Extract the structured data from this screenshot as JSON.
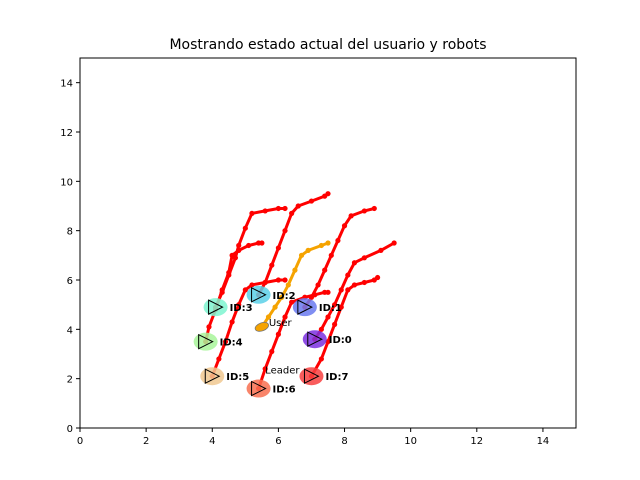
{
  "chart_data": {
    "type": "scatter",
    "title": "Mostrando estado actual del usuario y robots",
    "xlabel": "",
    "ylabel": "",
    "xlim": [
      0,
      15
    ],
    "ylim": [
      0,
      15
    ],
    "xticks": [
      "0",
      "2",
      "4",
      "6",
      "8",
      "10",
      "12",
      "14"
    ],
    "yticks": [
      "0",
      "2",
      "4",
      "6",
      "8",
      "10",
      "12",
      "14"
    ],
    "grid": false,
    "user": {
      "label": "User",
      "position": [
        5.5,
        4.1
      ],
      "color": "#f5a300",
      "trail": [
        [
          5.5,
          4.1
        ],
        [
          5.7,
          4.5
        ],
        [
          5.9,
          4.9
        ],
        [
          6.1,
          5.3
        ],
        [
          6.3,
          5.8
        ],
        [
          6.5,
          6.4
        ],
        [
          6.7,
          7.0
        ],
        [
          6.9,
          7.2
        ],
        [
          7.3,
          7.4
        ],
        [
          7.5,
          7.5
        ]
      ]
    },
    "leader_label": "Leader",
    "leader_label_position": [
      5.6,
      2.2
    ],
    "robots": [
      {
        "id": "ID:0",
        "position": [
          7.1,
          3.6
        ],
        "color": "#7b2fe0",
        "trail": [
          [
            7.1,
            3.6
          ],
          [
            7.3,
            4.0
          ],
          [
            7.5,
            4.5
          ],
          [
            7.7,
            5.0
          ],
          [
            7.9,
            5.6
          ],
          [
            8.1,
            6.2
          ],
          [
            8.3,
            6.7
          ],
          [
            8.6,
            6.9
          ],
          [
            9.1,
            7.2
          ],
          [
            9.5,
            7.5
          ]
        ]
      },
      {
        "id": "ID:1",
        "position": [
          6.8,
          4.9
        ],
        "color": "#6a7af0",
        "trail": [
          [
            6.8,
            4.9
          ],
          [
            7.0,
            5.3
          ],
          [
            7.2,
            5.8
          ],
          [
            7.4,
            6.4
          ],
          [
            7.6,
            7.0
          ],
          [
            7.8,
            7.6
          ],
          [
            8.0,
            8.2
          ],
          [
            8.2,
            8.6
          ],
          [
            8.6,
            8.8
          ],
          [
            8.9,
            8.9
          ]
        ]
      },
      {
        "id": "ID:2",
        "position": [
          5.4,
          5.4
        ],
        "color": "#5ad0e8",
        "trail": [
          [
            5.4,
            5.4
          ],
          [
            5.6,
            5.9
          ],
          [
            5.8,
            6.6
          ],
          [
            6.0,
            7.3
          ],
          [
            6.2,
            8.0
          ],
          [
            6.4,
            8.7
          ],
          [
            6.6,
            9.0
          ],
          [
            7.0,
            9.2
          ],
          [
            7.4,
            9.4
          ],
          [
            7.5,
            9.5
          ]
        ]
      },
      {
        "id": "ID:3",
        "position": [
          4.1,
          4.9
        ],
        "color": "#7ef5d0",
        "trail": [
          [
            4.1,
            4.9
          ],
          [
            4.3,
            5.5
          ],
          [
            4.5,
            6.2
          ],
          [
            4.7,
            6.9
          ],
          [
            4.8,
            7.4
          ],
          [
            5.0,
            8.1
          ],
          [
            5.2,
            8.7
          ],
          [
            5.6,
            8.8
          ],
          [
            6.0,
            8.9
          ],
          [
            6.2,
            8.9
          ]
        ]
      },
      {
        "id": "ID:4",
        "position": [
          3.8,
          3.5
        ],
        "color": "#a8f59a",
        "trail": [
          [
            3.8,
            3.5
          ],
          [
            3.9,
            4.1
          ],
          [
            4.1,
            4.8
          ],
          [
            4.3,
            5.6
          ],
          [
            4.5,
            6.3
          ],
          [
            4.6,
            7.0
          ],
          [
            4.8,
            7.2
          ],
          [
            5.1,
            7.4
          ],
          [
            5.4,
            7.5
          ],
          [
            5.5,
            7.5
          ]
        ]
      },
      {
        "id": "ID:5",
        "position": [
          4.0,
          2.1
        ],
        "color": "#f0c890",
        "trail": [
          [
            4.0,
            2.1
          ],
          [
            4.2,
            2.8
          ],
          [
            4.4,
            3.5
          ],
          [
            4.6,
            4.3
          ],
          [
            4.8,
            5.0
          ],
          [
            5.0,
            5.6
          ],
          [
            5.2,
            5.8
          ],
          [
            5.6,
            5.9
          ],
          [
            6.0,
            6.0
          ],
          [
            6.2,
            6.0
          ]
        ]
      },
      {
        "id": "ID:6",
        "position": [
          5.4,
          1.6
        ],
        "color": "#f87050",
        "trail": [
          [
            5.4,
            1.6
          ],
          [
            5.6,
            2.4
          ],
          [
            5.8,
            3.1
          ],
          [
            6.0,
            3.8
          ],
          [
            6.2,
            4.5
          ],
          [
            6.4,
            5.1
          ],
          [
            6.8,
            5.3
          ],
          [
            7.1,
            5.4
          ],
          [
            7.4,
            5.5
          ],
          [
            7.5,
            5.5
          ]
        ]
      },
      {
        "id": "ID:7",
        "position": [
          7.0,
          2.1
        ],
        "color": "#f84040",
        "trail": [
          [
            7.0,
            2.1
          ],
          [
            7.3,
            2.8
          ],
          [
            7.5,
            3.5
          ],
          [
            7.7,
            4.2
          ],
          [
            7.9,
            4.9
          ],
          [
            8.1,
            5.6
          ],
          [
            8.3,
            5.8
          ],
          [
            8.6,
            5.9
          ],
          [
            8.9,
            6.0
          ],
          [
            9.0,
            6.1
          ]
        ]
      }
    ]
  }
}
